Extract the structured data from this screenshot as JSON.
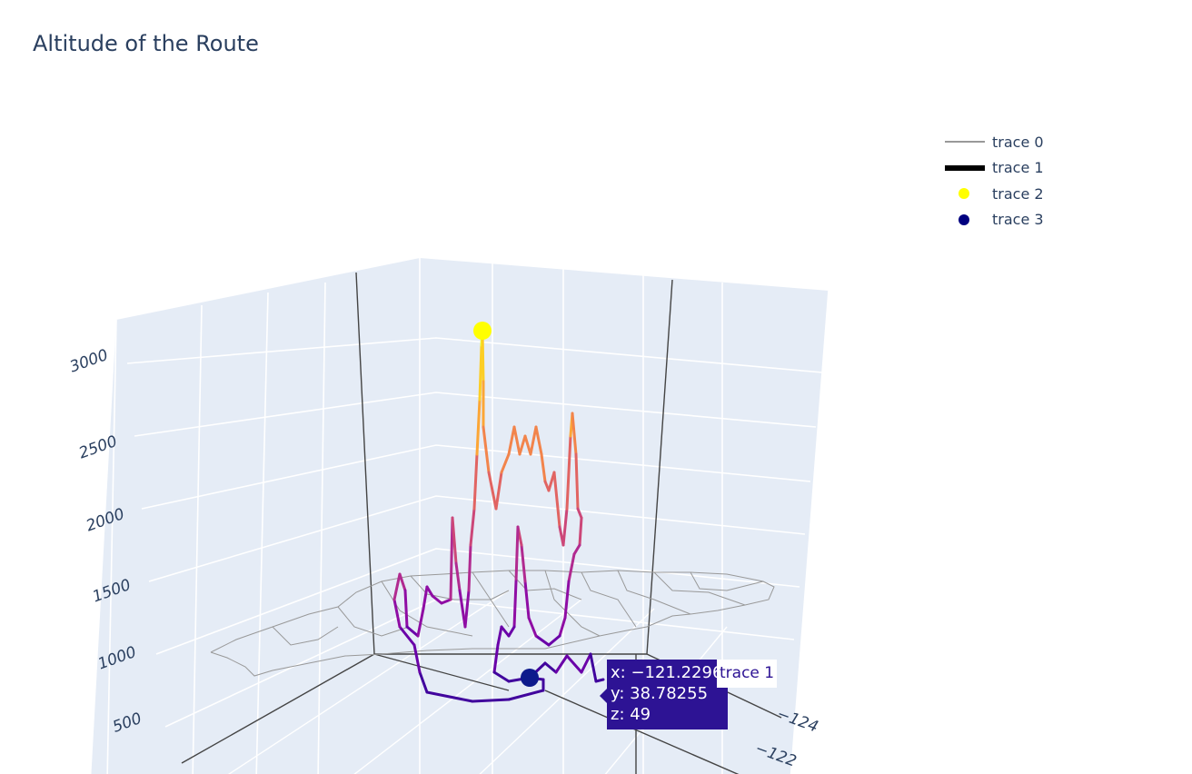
{
  "title": "Altitude of the Route",
  "legend": {
    "items": [
      {
        "label": "trace 0",
        "kind": "line",
        "color": "#999999"
      },
      {
        "label": "trace 1",
        "kind": "thick-line",
        "color": "#000000"
      },
      {
        "label": "trace 2",
        "kind": "marker",
        "color": "#ffff00"
      },
      {
        "label": "trace 3",
        "kind": "marker",
        "color": "#000080"
      }
    ]
  },
  "hover": {
    "x_text": "x: −121.2296",
    "y_text": "y: 38.78255",
    "z_text": "z: 49",
    "trace_name": "trace 1"
  },
  "chart_data": {
    "type": "scatter3d",
    "title": "Altitude of the Route",
    "colorscale": "plasma",
    "axes": {
      "z": {
        "title": "",
        "ticks": [
          "500",
          "1000",
          "1500",
          "2000",
          "2500",
          "3000"
        ]
      },
      "x": {
        "title": "",
        "ticks": [
          "−124",
          "−122"
        ]
      },
      "y": {
        "title": "",
        "ticks": []
      }
    },
    "series": [
      {
        "name": "trace 0",
        "mode": "lines",
        "color": "#999999",
        "description_values": "county boundary outlines at z = 0"
      },
      {
        "name": "trace 1",
        "mode": "lines",
        "colorscale": "plasma",
        "z_values": [
          49,
          120,
          300,
          520,
          900,
          1200,
          1600,
          2600,
          1800,
          1400,
          1700,
          2300,
          2750,
          2100,
          1500,
          1200,
          2800,
          1900,
          1100,
          700,
          600,
          400,
          300,
          120,
          49
        ]
      },
      {
        "name": "trace 2",
        "mode": "markers",
        "color": "#ffff00",
        "description_values": "route start, highest point (z ≈ 3000)"
      },
      {
        "name": "trace 3",
        "mode": "markers",
        "color": "#000080",
        "x": -121.2296,
        "y": 38.78255,
        "z": 49
      }
    ],
    "legend_position": "top-right"
  }
}
